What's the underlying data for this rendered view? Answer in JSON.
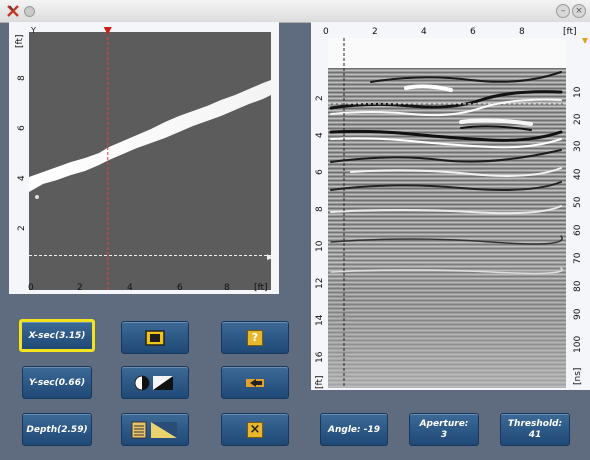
{
  "window": {
    "close_glyph": "×",
    "minimize_glyph": "–"
  },
  "left_plot": {
    "x_unit": "[ft]",
    "y_unit": "[ft]",
    "corner_label": "Y",
    "x_ticks": [
      "0",
      "2",
      "4",
      "6",
      "8"
    ],
    "y_ticks": [
      "2",
      "4",
      "6",
      "8"
    ],
    "crosshair_x_ft": 3.15,
    "crosshair_y_ft": 0.66
  },
  "right_plot": {
    "x_unit": "[ft]",
    "left_unit": "[ft]",
    "right_unit": "[ns]",
    "x_ticks": [
      "0",
      "2",
      "4",
      "6",
      "8"
    ],
    "left_ticks": [
      "2",
      "4",
      "6",
      "8",
      "10",
      "12",
      "14",
      "16"
    ],
    "right_ticks": [
      "10",
      "20",
      "30",
      "40",
      "50",
      "60",
      "70",
      "80",
      "90",
      "100"
    ],
    "depth_line_ft": 2.59
  },
  "buttons": {
    "xsec": "X-sec(3.15)",
    "ysec": "Y-sec(0.66)",
    "depth": "Depth(2.59)",
    "angle": "Angle: -19",
    "aperture_label": "Aperture:",
    "aperture_value": "3",
    "threshold_label": "Threshold:",
    "threshold_value": "41",
    "help_glyph": "?",
    "close_glyph": "×"
  }
}
